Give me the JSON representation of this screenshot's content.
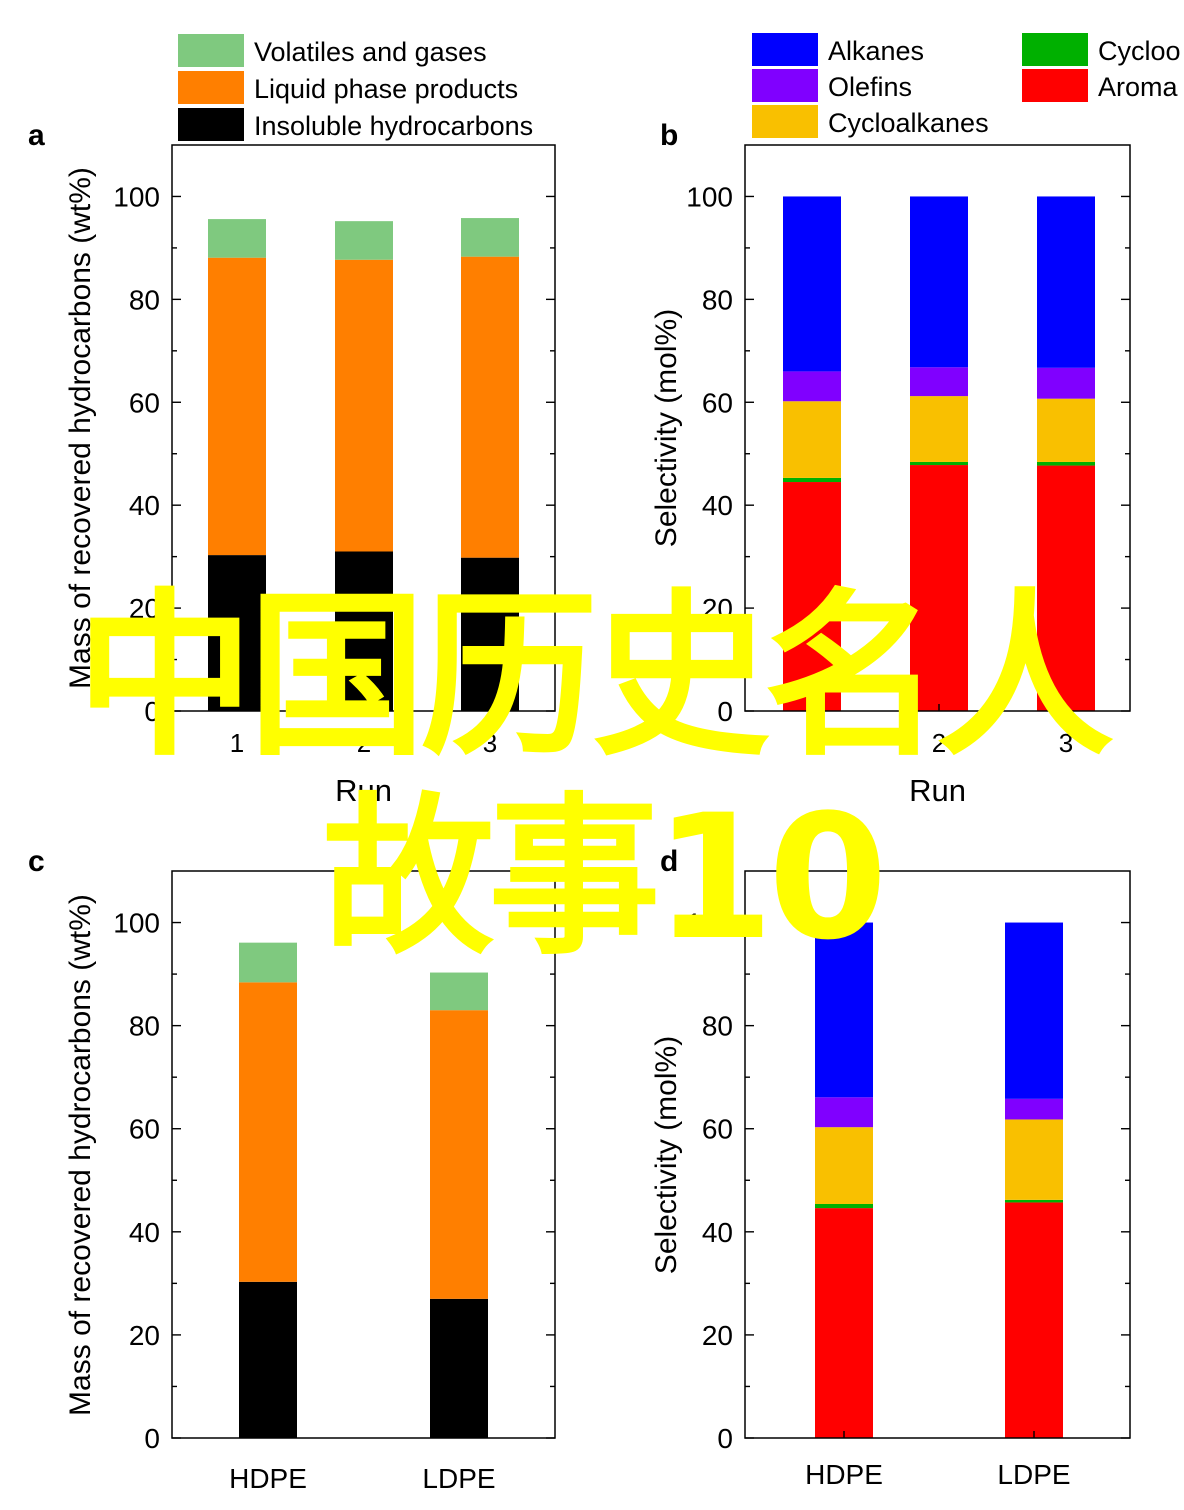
{
  "chart_data": [
    {
      "panel": "a",
      "type": "bar",
      "stacked": true,
      "categories": [
        "1",
        "2",
        "3"
      ],
      "xlabel": "Run",
      "ylabel": "Mass of recovered hydrocarbons (wt%)",
      "ylim": [
        0,
        110
      ],
      "yticks": [
        0,
        20,
        40,
        60,
        80,
        100
      ],
      "grid": false,
      "legend": "top",
      "series": [
        {
          "name": "Insoluble hydrocarbons",
          "color": "#000000",
          "values": [
            30.3,
            31.0,
            29.8
          ]
        },
        {
          "name": "Liquid phase products",
          "color": "#ff7f00",
          "values": [
            57.8,
            56.7,
            58.5
          ]
        },
        {
          "name": "Volatiles and gases",
          "color": "#7fc97f",
          "values": [
            7.5,
            7.5,
            7.5
          ]
        }
      ]
    },
    {
      "panel": "b",
      "type": "bar",
      "stacked": true,
      "categories": [
        "1",
        "2",
        "3"
      ],
      "xlabel": "Run",
      "ylabel": "Selectivity (mol%)",
      "ylim": [
        0,
        110
      ],
      "yticks": [
        0,
        20,
        40,
        60,
        80,
        100
      ],
      "grid": false,
      "legend": "top",
      "series": [
        {
          "name": "Aroma",
          "color": "#ff0000",
          "values": [
            44.5,
            47.8,
            47.7
          ]
        },
        {
          "name": "Cycloo",
          "color": "#00b000",
          "values": [
            0.8,
            0.6,
            0.7
          ]
        },
        {
          "name": "Cycloalkanes",
          "color": "#f9c000",
          "values": [
            14.9,
            12.8,
            12.3
          ]
        },
        {
          "name": "Olefins",
          "color": "#8000ff",
          "values": [
            5.8,
            5.6,
            6.0
          ]
        },
        {
          "name": "Alkanes",
          "color": "#0000ff",
          "values": [
            34.0,
            33.2,
            33.3
          ]
        }
      ]
    },
    {
      "panel": "c",
      "type": "bar",
      "stacked": true,
      "categories": [
        "HDPE",
        "LDPE"
      ],
      "xlabel": "",
      "ylabel": "Mass of recovered hydrocarbons (wt%)",
      "ylim": [
        0,
        110
      ],
      "yticks": [
        0,
        20,
        40,
        60,
        80,
        100
      ],
      "grid": false,
      "series": [
        {
          "name": "Insoluble hydrocarbons",
          "color": "#000000",
          "values": [
            30.3,
            27.0
          ]
        },
        {
          "name": "Liquid phase products",
          "color": "#ff7f00",
          "values": [
            58.1,
            56.0
          ]
        },
        {
          "name": "Volatiles and gases",
          "color": "#7fc97f",
          "values": [
            7.7,
            7.3
          ]
        }
      ]
    },
    {
      "panel": "d",
      "type": "bar",
      "stacked": true,
      "categories": [
        "HDPE",
        "LDPE"
      ],
      "xlabel": "",
      "ylabel": "Selectivity (mol%)",
      "ylim": [
        0,
        110
      ],
      "yticks": [
        0,
        20,
        40,
        60,
        80,
        100
      ],
      "grid": false,
      "series": [
        {
          "name": "Aroma",
          "color": "#ff0000",
          "values": [
            44.6,
            45.7
          ]
        },
        {
          "name": "Cycloo",
          "color": "#00b000",
          "values": [
            0.8,
            0.5
          ]
        },
        {
          "name": "Cycloalkanes",
          "color": "#f9c000",
          "values": [
            14.9,
            15.6
          ]
        },
        {
          "name": "Olefins",
          "color": "#8000ff",
          "values": [
            5.8,
            4.0
          ]
        },
        {
          "name": "Alkanes",
          "color": "#0000ff",
          "values": [
            33.9,
            34.2
          ]
        }
      ]
    }
  ],
  "legend_a": [
    {
      "label": "Volatiles and gases",
      "color": "#7fc97f"
    },
    {
      "label": "Liquid phase products",
      "color": "#ff7f00"
    },
    {
      "label": "Insoluble hydrocarbons",
      "color": "#000000"
    }
  ],
  "legend_b": [
    {
      "label": "Alkanes",
      "color": "#0000ff"
    },
    {
      "label": "Olefins",
      "color": "#8000ff"
    },
    {
      "label": "Cycloalkanes",
      "color": "#f9c000"
    },
    {
      "label": "Cycloo",
      "color": "#00b000"
    },
    {
      "label": "Aroma",
      "color": "#ff0000"
    }
  ],
  "overlay": {
    "line1": "中国历史名人",
    "line2": "故事10",
    "color": "#ffff00"
  }
}
